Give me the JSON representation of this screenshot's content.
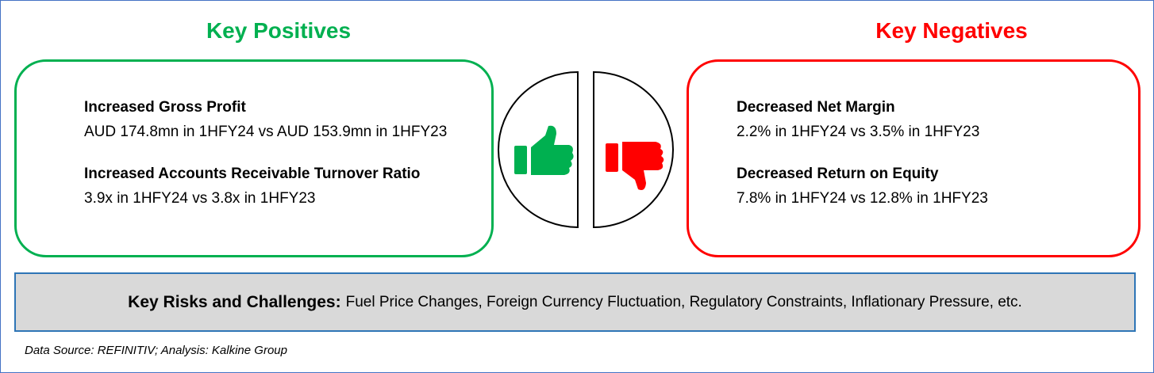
{
  "positives": {
    "title": "Key Positives",
    "items": [
      {
        "heading": "Increased Gross Profit",
        "detail": "AUD 174.8mn in 1HFY24 vs AUD 153.9mn in 1HFY23"
      },
      {
        "heading": "Increased Accounts Receivable Turnover Ratio",
        "detail": "3.9x in 1HFY24 vs 3.8x in 1HFY23"
      }
    ]
  },
  "negatives": {
    "title": "Key Negatives",
    "items": [
      {
        "heading": "Decreased Net Margin",
        "detail": "2.2% in 1HFY24 vs 3.5% in 1HFY23"
      },
      {
        "heading": "Decreased Return on Equity",
        "detail": "7.8% in 1HFY24 vs 12.8% in 1HFY23"
      }
    ]
  },
  "risks": {
    "label": "Key Risks and Challenges:",
    "text": "Fuel Price Changes, Foreign Currency Fluctuation, Regulatory Constraints, Inflationary Pressure, etc."
  },
  "source": "Data Source: REFINITIV; Analysis: Kalkine Group"
}
